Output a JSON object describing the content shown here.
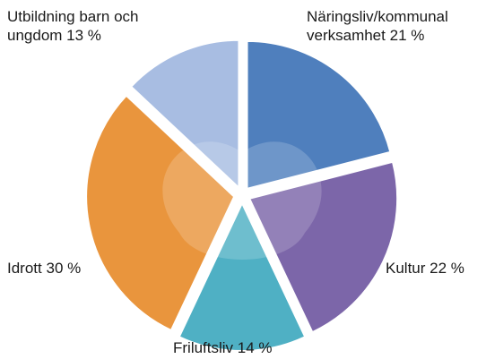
{
  "chart_data": {
    "type": "pie",
    "categories": [
      "Näringsliv/kommunal verksamhet",
      "Kultur",
      "Friluftsliv",
      "Idrott",
      "Utbildning barn och ungdom"
    ],
    "values": [
      21,
      22,
      14,
      30,
      13
    ],
    "value_labels": [
      "21 %",
      "22 %",
      "14 %",
      "30 %",
      "13 %"
    ],
    "colors": [
      "#4f7fbd",
      "#7c66a9",
      "#4fb0c4",
      "#e9953d",
      "#a8bde2"
    ]
  }
}
